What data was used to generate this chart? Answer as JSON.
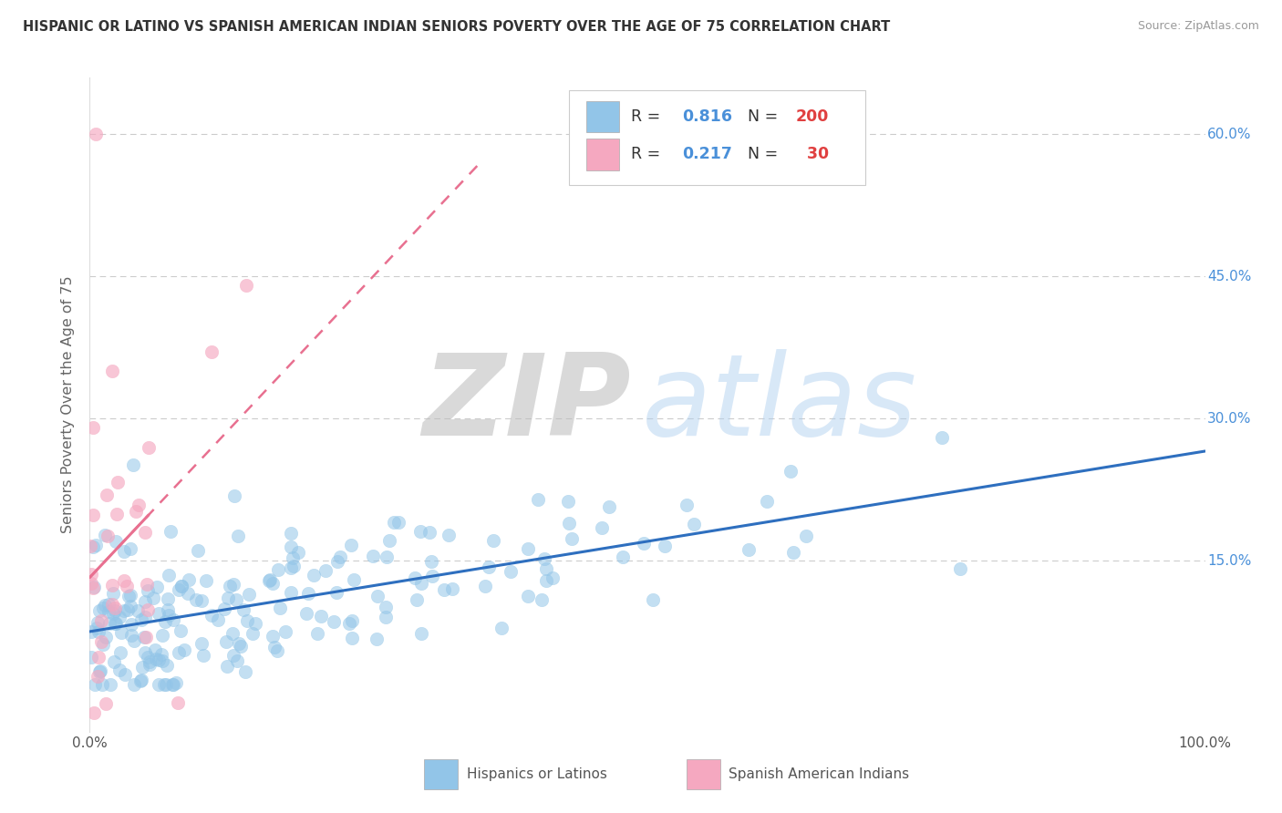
{
  "title": "HISPANIC OR LATINO VS SPANISH AMERICAN INDIAN SENIORS POVERTY OVER THE AGE OF 75 CORRELATION CHART",
  "source": "Source: ZipAtlas.com",
  "ylabel": "Seniors Poverty Over the Age of 75",
  "y_tick_labels": [
    "15.0%",
    "30.0%",
    "45.0%",
    "60.0%"
  ],
  "y_tick_values": [
    0.15,
    0.3,
    0.45,
    0.6
  ],
  "legend_labels": [
    "Hispanics or Latinos",
    "Spanish American Indians"
  ],
  "legend_R": [
    0.816,
    0.217
  ],
  "legend_N": [
    200,
    30
  ],
  "blue_color": "#92C5E8",
  "pink_color": "#F5A8C0",
  "blue_line_color": "#2E6FBF",
  "pink_line_color": "#E87090",
  "watermark_zip": "ZIP",
  "watermark_atlas": "atlas",
  "watermark_zip_color": "#BBBBBB",
  "watermark_atlas_color": "#AACCEE",
  "background_color": "#FFFFFF",
  "grid_color": "#CCCCCC",
  "title_color": "#333333",
  "axis_label_color": "#666666",
  "tick_label_color": "#4A90D9",
  "legend_R_color": "#4A90D9",
  "legend_N_color": "#E04040",
  "blue_seed": 42,
  "pink_seed": 99,
  "blue_N": 200,
  "pink_N": 30,
  "blue_R": 0.816,
  "pink_R": 0.217,
  "xlim": [
    0.0,
    1.0
  ],
  "ylim": [
    -0.03,
    0.66
  ]
}
